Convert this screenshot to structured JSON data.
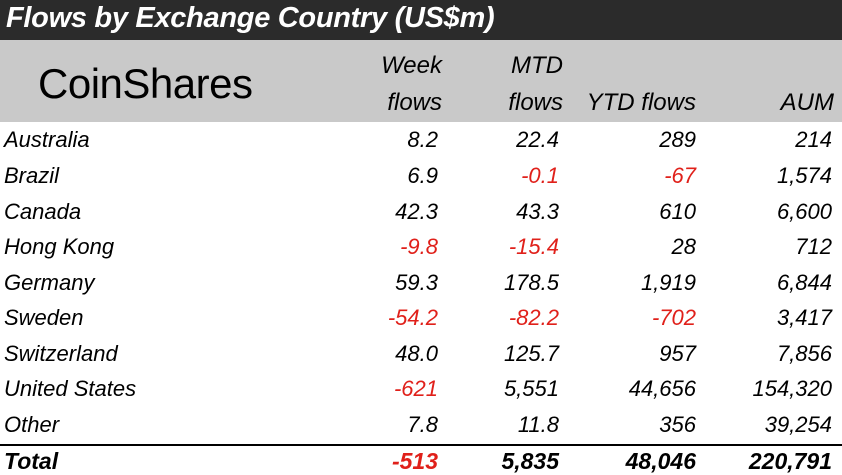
{
  "title": "Flows by Exchange Country (US$m)",
  "logo_text": "CoinShares",
  "headers": {
    "week_line1": "Week",
    "week_line2": "flows",
    "mtd_line1": "MTD",
    "mtd_line2": "flows",
    "ytd": "YTD flows",
    "aum": "AUM"
  },
  "rows": [
    {
      "country": "Australia",
      "week": "8.2",
      "mtd": "22.4",
      "ytd": "289",
      "aum": "214"
    },
    {
      "country": "Brazil",
      "week": "6.9",
      "mtd": "-0.1",
      "ytd": "-67",
      "aum": "1,574"
    },
    {
      "country": "Canada",
      "week": "42.3",
      "mtd": "43.3",
      "ytd": "610",
      "aum": "6,600"
    },
    {
      "country": "Hong Kong",
      "week": "-9.8",
      "mtd": "-15.4",
      "ytd": "28",
      "aum": "712"
    },
    {
      "country": "Germany",
      "week": "59.3",
      "mtd": "178.5",
      "ytd": "1,919",
      "aum": "6,844"
    },
    {
      "country": "Sweden",
      "week": "-54.2",
      "mtd": "-82.2",
      "ytd": "-702",
      "aum": "3,417"
    },
    {
      "country": "Switzerland",
      "week": "48.0",
      "mtd": "125.7",
      "ytd": "957",
      "aum": "7,856"
    },
    {
      "country": "United States",
      "week": "-621",
      "mtd": "5,551",
      "ytd": "44,656",
      "aum": "154,320"
    },
    {
      "country": "Other",
      "week": "7.8",
      "mtd": "11.8",
      "ytd": "356",
      "aum": "39,254"
    }
  ],
  "total": {
    "label": "Total",
    "week": "-513",
    "mtd": "5,835",
    "ytd": "48,046",
    "aum": "220,791"
  },
  "colors": {
    "negative": "#e0201a",
    "title_bg": "#2b2b2b",
    "header_bg": "#c9c9c9"
  }
}
